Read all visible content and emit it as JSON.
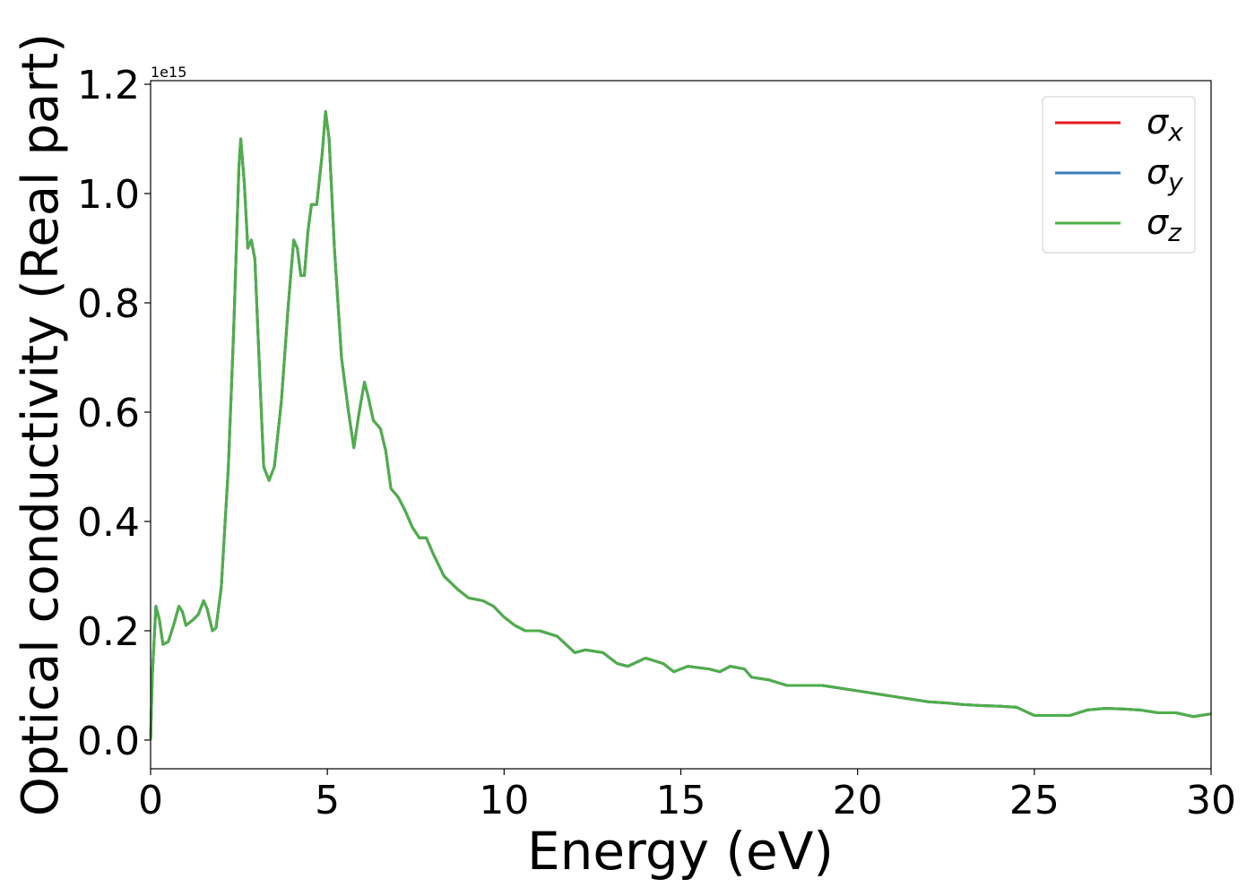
{
  "chart_data": {
    "type": "line",
    "xlabel": "Energy (eV)",
    "ylabel": "Optical conductivity (Real part)",
    "y_offset_text": "1e15",
    "x": [
      0,
      0.05,
      0.15,
      0.25,
      0.35,
      0.5,
      0.65,
      0.8,
      0.9,
      1.0,
      1.2,
      1.35,
      1.5,
      1.6,
      1.75,
      1.85,
      2.0,
      2.2,
      2.35,
      2.5,
      2.55,
      2.65,
      2.75,
      2.85,
      2.95,
      3.1,
      3.2,
      3.35,
      3.5,
      3.7,
      3.9,
      4.05,
      4.15,
      4.25,
      4.35,
      4.45,
      4.55,
      4.7,
      4.85,
      4.95,
      5.05,
      5.2,
      5.4,
      5.6,
      5.75,
      5.9,
      6.05,
      6.15,
      6.3,
      6.5,
      6.65,
      6.8,
      7.0,
      7.2,
      7.4,
      7.6,
      7.8,
      8.0,
      8.3,
      8.7,
      9.0,
      9.4,
      9.7,
      10.0,
      10.3,
      10.6,
      11.0,
      11.5,
      12.0,
      12.3,
      12.8,
      13.2,
      13.5,
      14.0,
      14.5,
      14.8,
      15.2,
      15.8,
      16.1,
      16.4,
      16.8,
      17.0,
      17.5,
      18.0,
      18.5,
      19.0,
      19.5,
      20.0,
      20.5,
      21.0,
      21.5,
      22.0,
      22.5,
      23.0,
      23.5,
      24.0,
      24.5,
      25.0,
      25.5,
      26.0,
      26.5,
      27.0,
      27.5,
      28.0,
      28.5,
      29.0,
      29.5,
      30.0
    ],
    "series": [
      {
        "name": "σx",
        "color": "#e41a1c",
        "values": [
          0,
          0.12,
          0.245,
          0.22,
          0.175,
          0.18,
          0.21,
          0.245,
          0.235,
          0.21,
          0.22,
          0.23,
          0.255,
          0.24,
          0.2,
          0.205,
          0.28,
          0.5,
          0.75,
          1.05,
          1.1,
          1.02,
          0.9,
          0.915,
          0.88,
          0.65,
          0.5,
          0.475,
          0.5,
          0.62,
          0.8,
          0.915,
          0.9,
          0.85,
          0.85,
          0.93,
          0.98,
          0.98,
          1.07,
          1.15,
          1.1,
          0.9,
          0.7,
          0.6,
          0.535,
          0.6,
          0.655,
          0.63,
          0.585,
          0.57,
          0.53,
          0.46,
          0.445,
          0.42,
          0.39,
          0.37,
          0.37,
          0.34,
          0.3,
          0.275,
          0.26,
          0.255,
          0.245,
          0.225,
          0.21,
          0.2,
          0.2,
          0.19,
          0.16,
          0.165,
          0.16,
          0.14,
          0.135,
          0.15,
          0.14,
          0.125,
          0.135,
          0.13,
          0.125,
          0.135,
          0.13,
          0.115,
          0.11,
          0.1,
          0.1,
          0.1,
          0.095,
          0.09,
          0.085,
          0.08,
          0.075,
          0.07,
          0.068,
          0.065,
          0.063,
          0.062,
          0.06,
          0.045,
          0.045,
          0.045,
          0.055,
          0.058,
          0.057,
          0.055,
          0.05,
          0.05,
          0.043,
          0.048
        ]
      },
      {
        "name": "σy",
        "color": "#377eb8",
        "values": [
          0,
          0.12,
          0.245,
          0.22,
          0.175,
          0.18,
          0.21,
          0.245,
          0.235,
          0.21,
          0.22,
          0.23,
          0.255,
          0.24,
          0.2,
          0.205,
          0.28,
          0.5,
          0.75,
          1.05,
          1.1,
          1.02,
          0.9,
          0.915,
          0.88,
          0.65,
          0.5,
          0.475,
          0.5,
          0.62,
          0.8,
          0.915,
          0.9,
          0.85,
          0.85,
          0.93,
          0.98,
          0.98,
          1.07,
          1.15,
          1.1,
          0.9,
          0.7,
          0.6,
          0.535,
          0.6,
          0.655,
          0.63,
          0.585,
          0.57,
          0.53,
          0.46,
          0.445,
          0.42,
          0.39,
          0.37,
          0.37,
          0.34,
          0.3,
          0.275,
          0.26,
          0.255,
          0.245,
          0.225,
          0.21,
          0.2,
          0.2,
          0.19,
          0.16,
          0.165,
          0.16,
          0.14,
          0.135,
          0.15,
          0.14,
          0.125,
          0.135,
          0.13,
          0.125,
          0.135,
          0.13,
          0.115,
          0.11,
          0.1,
          0.1,
          0.1,
          0.095,
          0.09,
          0.085,
          0.08,
          0.075,
          0.07,
          0.068,
          0.065,
          0.063,
          0.062,
          0.06,
          0.045,
          0.045,
          0.045,
          0.055,
          0.058,
          0.057,
          0.055,
          0.05,
          0.05,
          0.043,
          0.048
        ]
      },
      {
        "name": "σz",
        "color": "#4daf4a",
        "values": [
          0,
          0.12,
          0.245,
          0.22,
          0.175,
          0.18,
          0.21,
          0.245,
          0.235,
          0.21,
          0.22,
          0.23,
          0.255,
          0.24,
          0.2,
          0.205,
          0.28,
          0.5,
          0.75,
          1.05,
          1.1,
          1.02,
          0.9,
          0.915,
          0.88,
          0.65,
          0.5,
          0.475,
          0.5,
          0.62,
          0.8,
          0.915,
          0.9,
          0.85,
          0.85,
          0.93,
          0.98,
          0.98,
          1.07,
          1.15,
          1.1,
          0.9,
          0.7,
          0.6,
          0.535,
          0.6,
          0.655,
          0.63,
          0.585,
          0.57,
          0.53,
          0.46,
          0.445,
          0.42,
          0.39,
          0.37,
          0.37,
          0.34,
          0.3,
          0.275,
          0.26,
          0.255,
          0.245,
          0.225,
          0.21,
          0.2,
          0.2,
          0.19,
          0.16,
          0.165,
          0.16,
          0.14,
          0.135,
          0.15,
          0.14,
          0.125,
          0.135,
          0.13,
          0.125,
          0.135,
          0.13,
          0.115,
          0.11,
          0.1,
          0.1,
          0.1,
          0.095,
          0.09,
          0.085,
          0.08,
          0.075,
          0.07,
          0.068,
          0.065,
          0.063,
          0.062,
          0.06,
          0.045,
          0.045,
          0.045,
          0.055,
          0.058,
          0.057,
          0.055,
          0.05,
          0.05,
          0.043,
          0.048
        ]
      }
    ],
    "xlim": [
      0,
      30
    ],
    "xticks": [
      0,
      5,
      10,
      15,
      20,
      25,
      30
    ],
    "ylim": [
      -0.0525,
      1.2066
    ],
    "yticks": [
      {
        "value": 0,
        "label": "0.0"
      },
      {
        "value": 0.2,
        "label": "0.2"
      },
      {
        "value": 0.4,
        "label": "0.4"
      },
      {
        "value": 0.6,
        "label": "0.6"
      },
      {
        "value": 0.8,
        "label": "0.8"
      },
      {
        "value": 1.0,
        "label": "1.0"
      },
      {
        "value": 1.2,
        "label": "1.2"
      }
    ],
    "grid": false,
    "legend": "upper right"
  }
}
